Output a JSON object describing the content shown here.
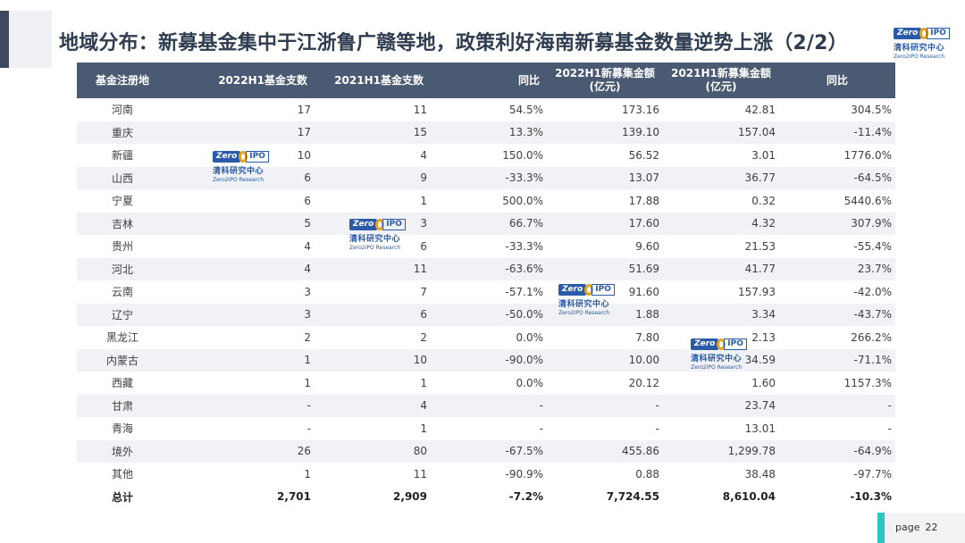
{
  "title": "地域分布：新募基金集中于江浙鲁广赣等地，政策利好海南新募基金数量逆势上涨（2/2）",
  "logo": {
    "mark_left": "Zero",
    "mark_right": "IPO",
    "cn": "清科研究中心",
    "en": "Zero2IPO Research"
  },
  "table": {
    "headers": [
      "基金注册地",
      "2022H1基金支数",
      "2021H1基金支数",
      "同比",
      "2022H1新募集金额\n(亿元)",
      "2021H1新募集金额\n(亿元)",
      "同比"
    ],
    "rows": [
      [
        "河南",
        "17",
        "11",
        "54.5%",
        "173.16",
        "42.81",
        "304.5%"
      ],
      [
        "重庆",
        "17",
        "15",
        "13.3%",
        "139.10",
        "157.04",
        "-11.4%"
      ],
      [
        "新疆",
        "10",
        "4",
        "150.0%",
        "56.52",
        "3.01",
        "1776.0%"
      ],
      [
        "山西",
        "6",
        "9",
        "-33.3%",
        "13.07",
        "36.77",
        "-64.5%"
      ],
      [
        "宁夏",
        "6",
        "1",
        "500.0%",
        "17.88",
        "0.32",
        "5440.6%"
      ],
      [
        "吉林",
        "5",
        "3",
        "66.7%",
        "17.60",
        "4.32",
        "307.9%"
      ],
      [
        "贵州",
        "4",
        "6",
        "-33.3%",
        "9.60",
        "21.53",
        "-55.4%"
      ],
      [
        "河北",
        "4",
        "11",
        "-63.6%",
        "51.69",
        "41.77",
        "23.7%"
      ],
      [
        "云南",
        "3",
        "7",
        "-57.1%",
        "91.60",
        "157.93",
        "-42.0%"
      ],
      [
        "辽宁",
        "3",
        "6",
        "-50.0%",
        "1.88",
        "3.34",
        "-43.7%"
      ],
      [
        "黑龙江",
        "2",
        "2",
        "0.0%",
        "7.80",
        "2.13",
        "266.2%"
      ],
      [
        "内蒙古",
        "1",
        "10",
        "-90.0%",
        "10.00",
        "34.59",
        "-71.1%"
      ],
      [
        "西藏",
        "1",
        "1",
        "0.0%",
        "20.12",
        "1.60",
        "1157.3%"
      ],
      [
        "甘肃",
        "-",
        "4",
        "-",
        "-",
        "23.74",
        "-"
      ],
      [
        "青海",
        "-",
        "1",
        "-",
        "-",
        "13.01",
        "-"
      ],
      [
        "境外",
        "26",
        "80",
        "-67.5%",
        "455.86",
        "1,299.78",
        "-64.9%"
      ],
      [
        "其他",
        "1",
        "11",
        "-90.9%",
        "0.88",
        "38.48",
        "-97.7%"
      ],
      [
        "总计",
        "2,701",
        "2,909",
        "-7.2%",
        "7,724.55",
        "8,610.04",
        "-10.3%"
      ]
    ]
  },
  "page": {
    "label": "page",
    "number": "22"
  }
}
